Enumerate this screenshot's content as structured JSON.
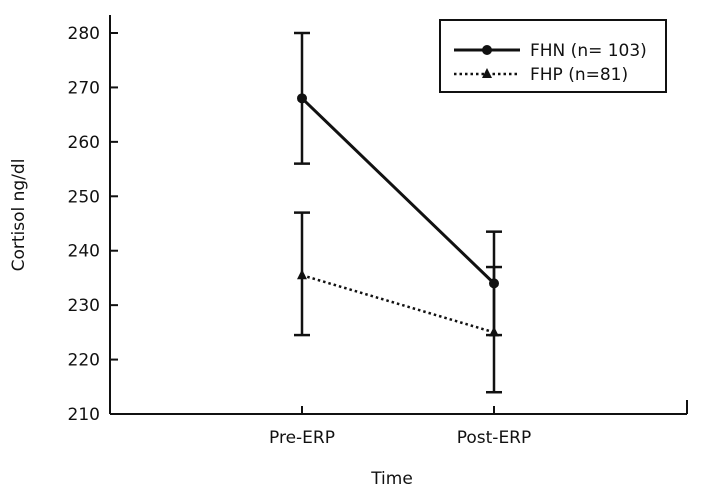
{
  "chart_data": {
    "type": "line",
    "title": "",
    "xlabel": "Time",
    "ylabel": "Cortisol ng/dl",
    "categories": [
      "Pre-ERP",
      "Post-ERP"
    ],
    "ylim": [
      210,
      280
    ],
    "yticks": [
      210,
      220,
      230,
      240,
      250,
      260,
      270,
      280
    ],
    "grid": false,
    "legend_position": "top-right",
    "series": [
      {
        "name": "FHN (n= 103)",
        "line_style": "solid",
        "marker": "circle",
        "color": "#111111",
        "values": [
          268,
          234
        ],
        "error_low": [
          256,
          224.5
        ],
        "error_high": [
          280,
          243.5
        ]
      },
      {
        "name": "FHP (n=81)",
        "line_style": "dotted",
        "marker": "triangle",
        "color": "#111111",
        "values": [
          235.5,
          225
        ],
        "error_low": [
          224.5,
          214
        ],
        "error_high": [
          247,
          237
        ]
      }
    ]
  }
}
